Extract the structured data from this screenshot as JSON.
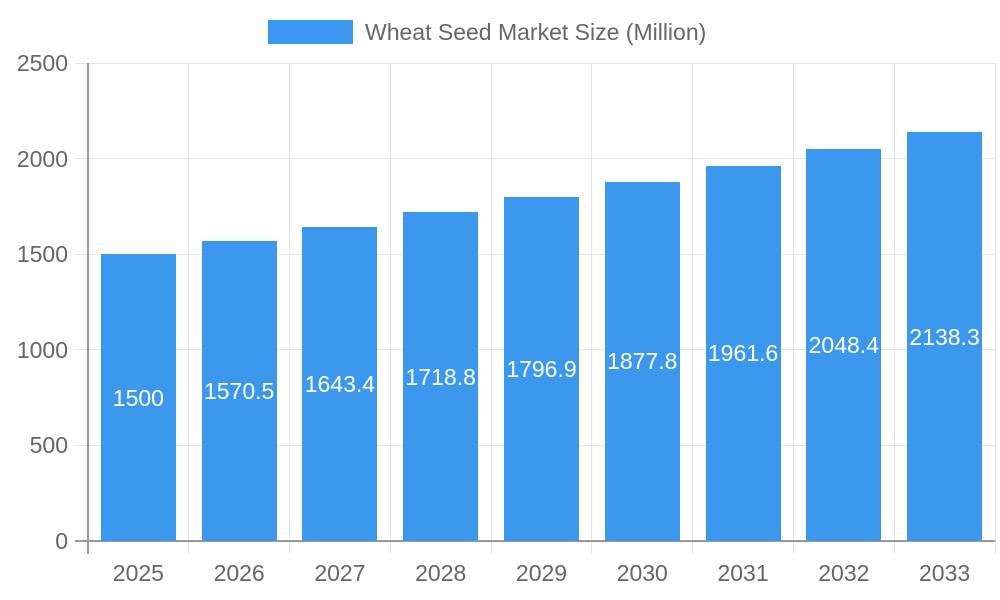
{
  "chart_data": {
    "type": "bar",
    "title": "Wheat Seed Market Size (Million)",
    "series_name": "Wheat Seed Market Size (Million)",
    "categories": [
      "2025",
      "2026",
      "2027",
      "2028",
      "2029",
      "2030",
      "2031",
      "2032",
      "2033"
    ],
    "values": [
      1500,
      1570.5,
      1643.4,
      1718.8,
      1796.9,
      1877.8,
      1961.6,
      2048.4,
      2138.3
    ],
    "xlabel": "",
    "ylabel": "",
    "ylim": [
      0,
      2500
    ],
    "yticks": [
      0,
      500,
      1000,
      1500,
      2000,
      2500
    ],
    "grid": true,
    "legend_position": "top",
    "data_labels_inside_bars": true,
    "colors": {
      "bar": "#3B98ED",
      "data_label_text": "#FFFFFF",
      "axis_text": "#666666",
      "gridline": "#E5E5E5",
      "axis_line": "#999999",
      "background": "#FFFFFF"
    }
  }
}
